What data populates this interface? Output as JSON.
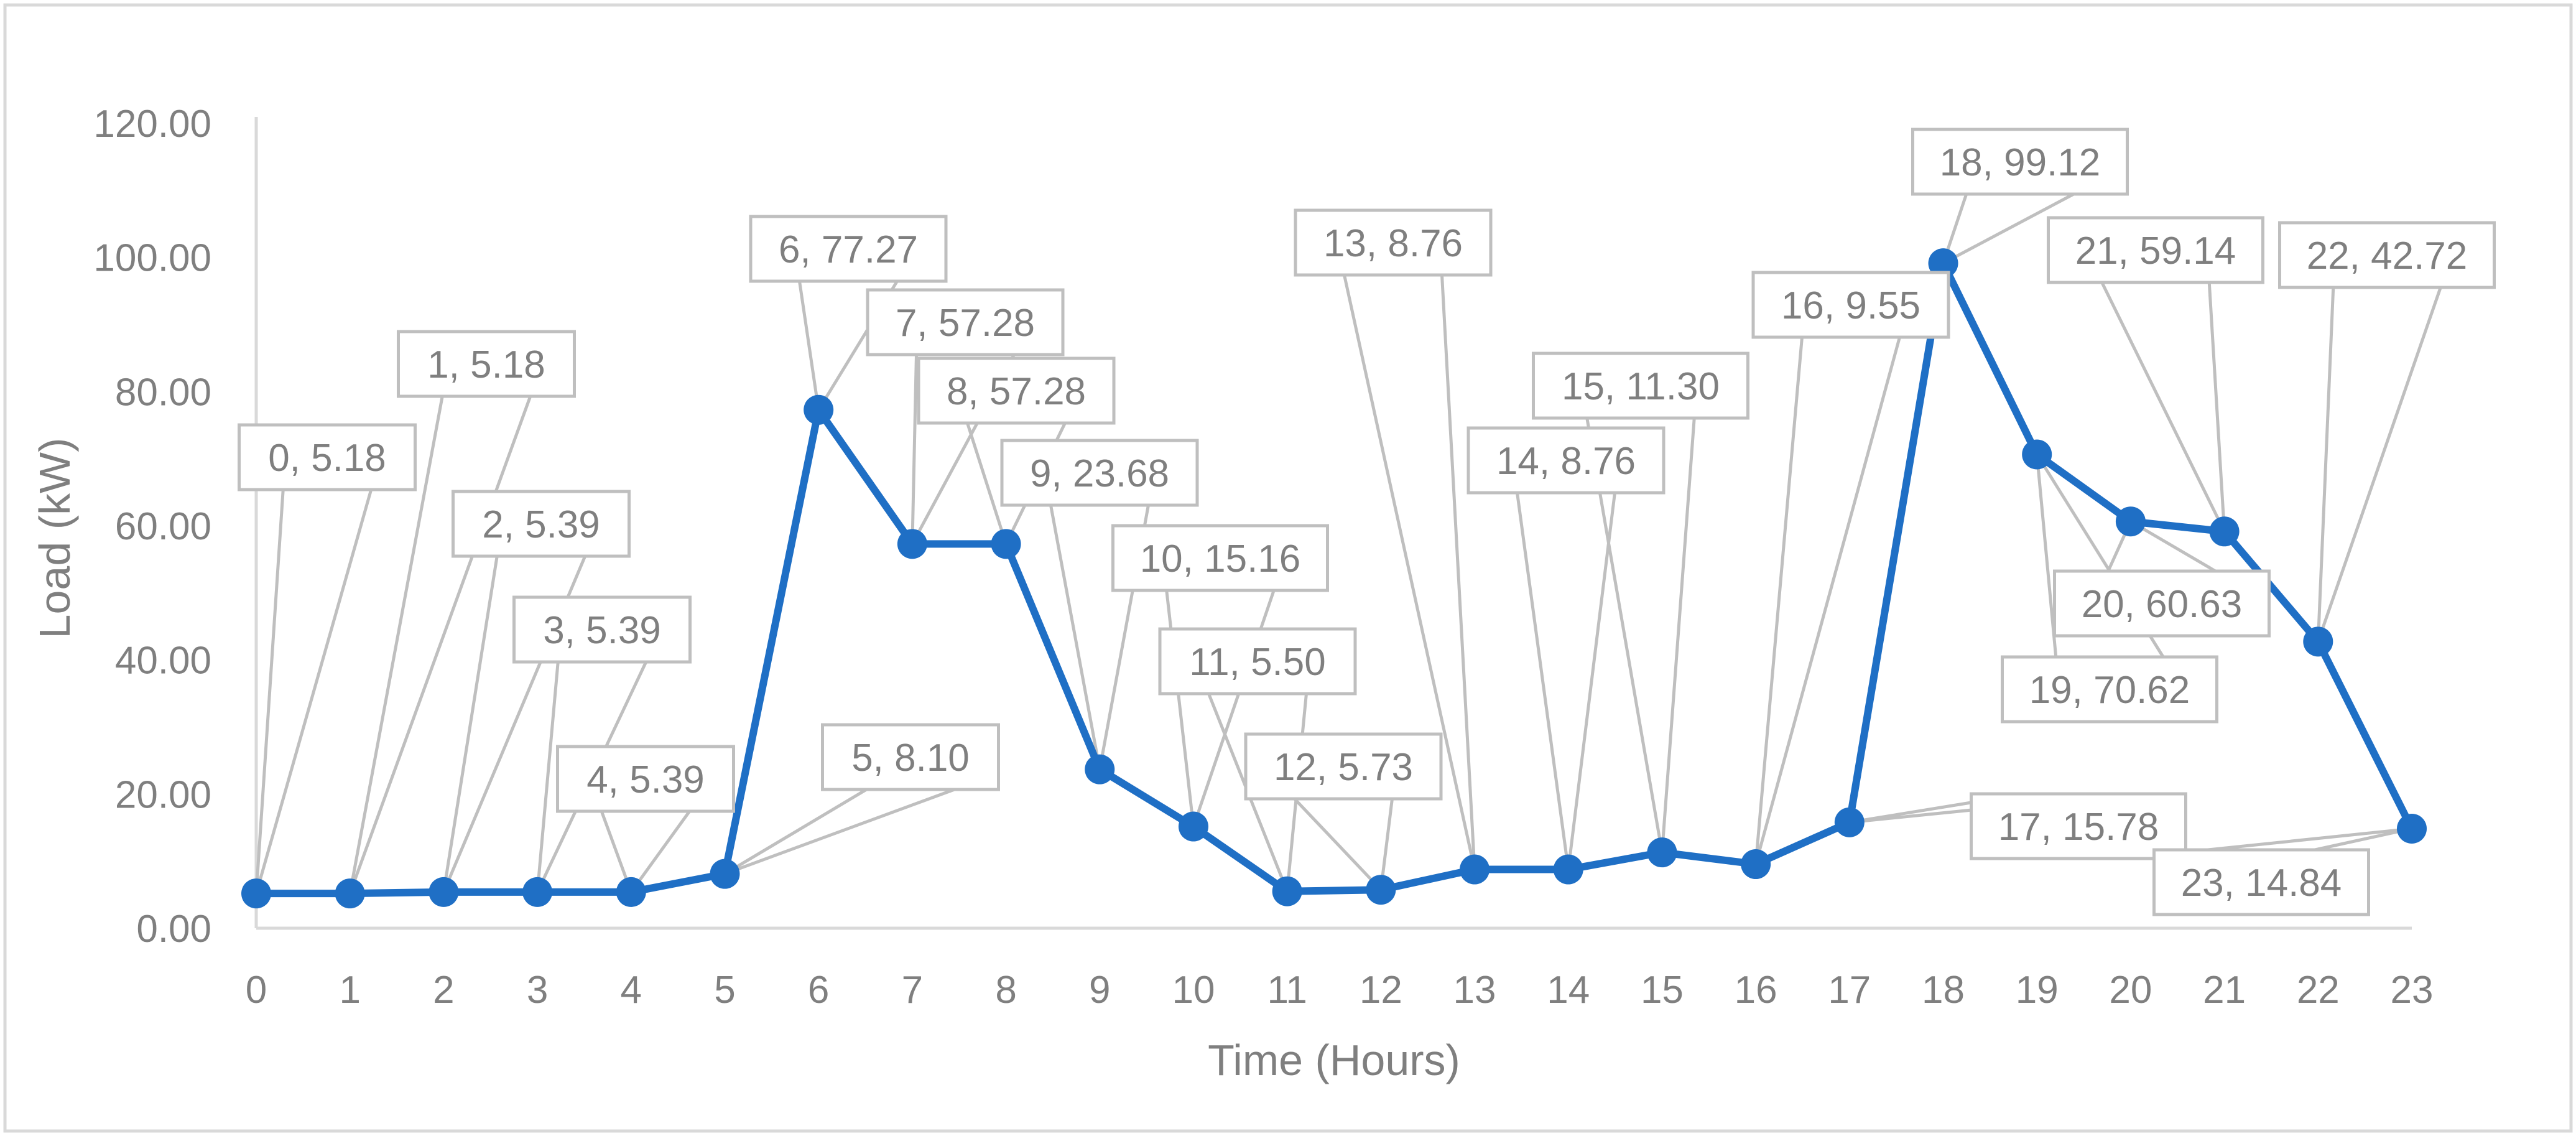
{
  "chart_data": {
    "type": "line",
    "title": "",
    "xlabel": "Time (Hours)",
    "ylabel": "Load (kW)",
    "x": [
      0,
      1,
      2,
      3,
      4,
      5,
      6,
      7,
      8,
      9,
      10,
      11,
      12,
      13,
      14,
      15,
      16,
      17,
      18,
      19,
      20,
      21,
      22,
      23
    ],
    "x_tick_labels": [
      "0",
      "1",
      "2",
      "3",
      "4",
      "5",
      "6",
      "7",
      "8",
      "9",
      "10",
      "11",
      "12",
      "13",
      "14",
      "15",
      "16",
      "17",
      "18",
      "19",
      "20",
      "21",
      "22",
      "23"
    ],
    "ylim": [
      0,
      120
    ],
    "y_tick_labels": [
      "0.00",
      "20.00",
      "40.00",
      "60.00",
      "80.00",
      "100.00",
      "120.00"
    ],
    "grid": false,
    "legend": "none",
    "series": [
      {
        "color": "#1f6fc5",
        "values": [
          5.18,
          5.18,
          5.39,
          5.39,
          5.39,
          8.1,
          77.27,
          57.28,
          57.28,
          23.68,
          15.16,
          5.5,
          5.73,
          8.76,
          8.76,
          11.3,
          9.55,
          15.78,
          99.12,
          70.62,
          60.63,
          59.14,
          42.72,
          14.84
        ]
      }
    ],
    "data_labels": [
      "0, 5.18",
      "1, 5.18",
      "2, 5.39",
      "3, 5.39",
      "4, 5.39",
      "5, 8.10",
      "6, 77.27",
      "7, 57.28",
      "8, 57.28",
      "9, 23.68",
      "10, 15.16",
      "11, 5.50",
      "12, 5.73",
      "13, 8.76",
      "14, 8.76",
      "15, 11.30",
      "16, 9.55",
      "17, 15.78",
      "18, 99.12",
      "19, 70.62",
      "20, 60.63",
      "21, 59.14",
      "22, 42.72",
      "23, 14.84"
    ]
  }
}
